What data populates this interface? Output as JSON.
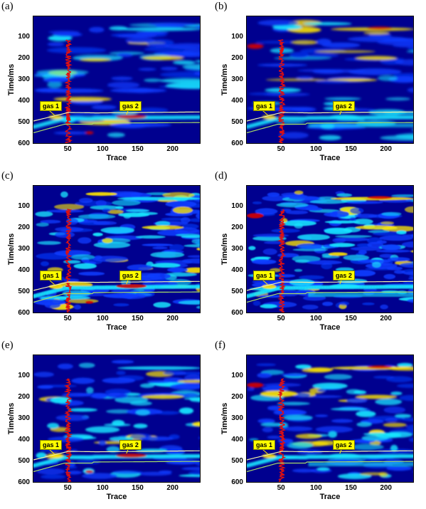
{
  "figure": {
    "panels": [
      {
        "id": "a",
        "letter": "(a)",
        "ylabel": "Time/ms",
        "yticks": [
          "100",
          "200",
          "300",
          "400",
          "500",
          "600"
        ],
        "variant": "smooth",
        "amplitude": "single"
      },
      {
        "id": "b",
        "letter": "(b)",
        "ylabel": "Time/ms",
        "yticks": [
          "100",
          "200",
          "300",
          "400",
          "500",
          "600"
        ],
        "variant": "smooth",
        "amplitude": "high"
      },
      {
        "id": "c",
        "letter": "(c)",
        "ylabel": "Time/ms",
        "yticks": [
          "100",
          "200",
          "300",
          "400",
          "500",
          "600"
        ],
        "variant": "noisy",
        "amplitude": "single"
      },
      {
        "id": "d",
        "letter": "(d)",
        "ylabel": "Time/ms",
        "yticks": [
          "100",
          "200",
          "300",
          "400",
          "500",
          "600"
        ],
        "variant": "noisy",
        "amplitude": "high"
      },
      {
        "id": "e",
        "letter": "(e)",
        "ylabel": "Time/ms",
        "yticks": [
          "100",
          "200",
          "300",
          "400",
          "500",
          "600"
        ],
        "variant": "medium",
        "amplitude": "single"
      },
      {
        "id": "f",
        "letter": "(f)",
        "ylabel": "Time/ms",
        "yticks": [
          "100",
          "200",
          "300",
          "400",
          "500",
          "600"
        ],
        "variant": "medium",
        "amplitude": "high"
      }
    ],
    "xlabel": "Trace",
    "xticks": [
      "50",
      "100",
      "150",
      "200"
    ],
    "gas1_label": "gas 1",
    "gas2_label": "gas 2",
    "colors": {
      "background": "#00008f",
      "low": "#0a3cff",
      "mid": "#19e6ff",
      "high": "#ffe600",
      "peak": "#d40000",
      "log": "#e01010",
      "horizon_top": "#f2f2a8",
      "horizon_bottom": "#a8dd68",
      "gas_box": "#ffff00"
    }
  },
  "chart_data": [
    {
      "type": "heatmap",
      "panel": "a",
      "xlabel": "Trace",
      "ylabel": "Time/ms",
      "xlim": [
        0,
        240
      ],
      "ylim": [
        600,
        0
      ]
    },
    {
      "type": "heatmap",
      "panel": "b",
      "xlabel": "Trace",
      "ylabel": "Time/ms",
      "xlim": [
        0,
        240
      ],
      "ylim": [
        600,
        0
      ]
    },
    {
      "type": "heatmap",
      "panel": "c",
      "xlabel": "Trace",
      "ylabel": "Time/ms",
      "xlim": [
        0,
        240
      ],
      "ylim": [
        600,
        0
      ]
    },
    {
      "type": "heatmap",
      "panel": "d",
      "xlabel": "Trace",
      "ylabel": "Time/ms",
      "xlim": [
        0,
        240
      ],
      "ylim": [
        600,
        0
      ]
    },
    {
      "type": "heatmap",
      "panel": "e",
      "xlabel": "Trace",
      "ylabel": "Time/ms",
      "xlim": [
        0,
        240
      ],
      "ylim": [
        600,
        0
      ]
    },
    {
      "type": "heatmap",
      "panel": "f",
      "xlabel": "Trace",
      "ylabel": "Time/ms",
      "xlim": [
        0,
        240
      ],
      "ylim": [
        600,
        0
      ]
    }
  ]
}
